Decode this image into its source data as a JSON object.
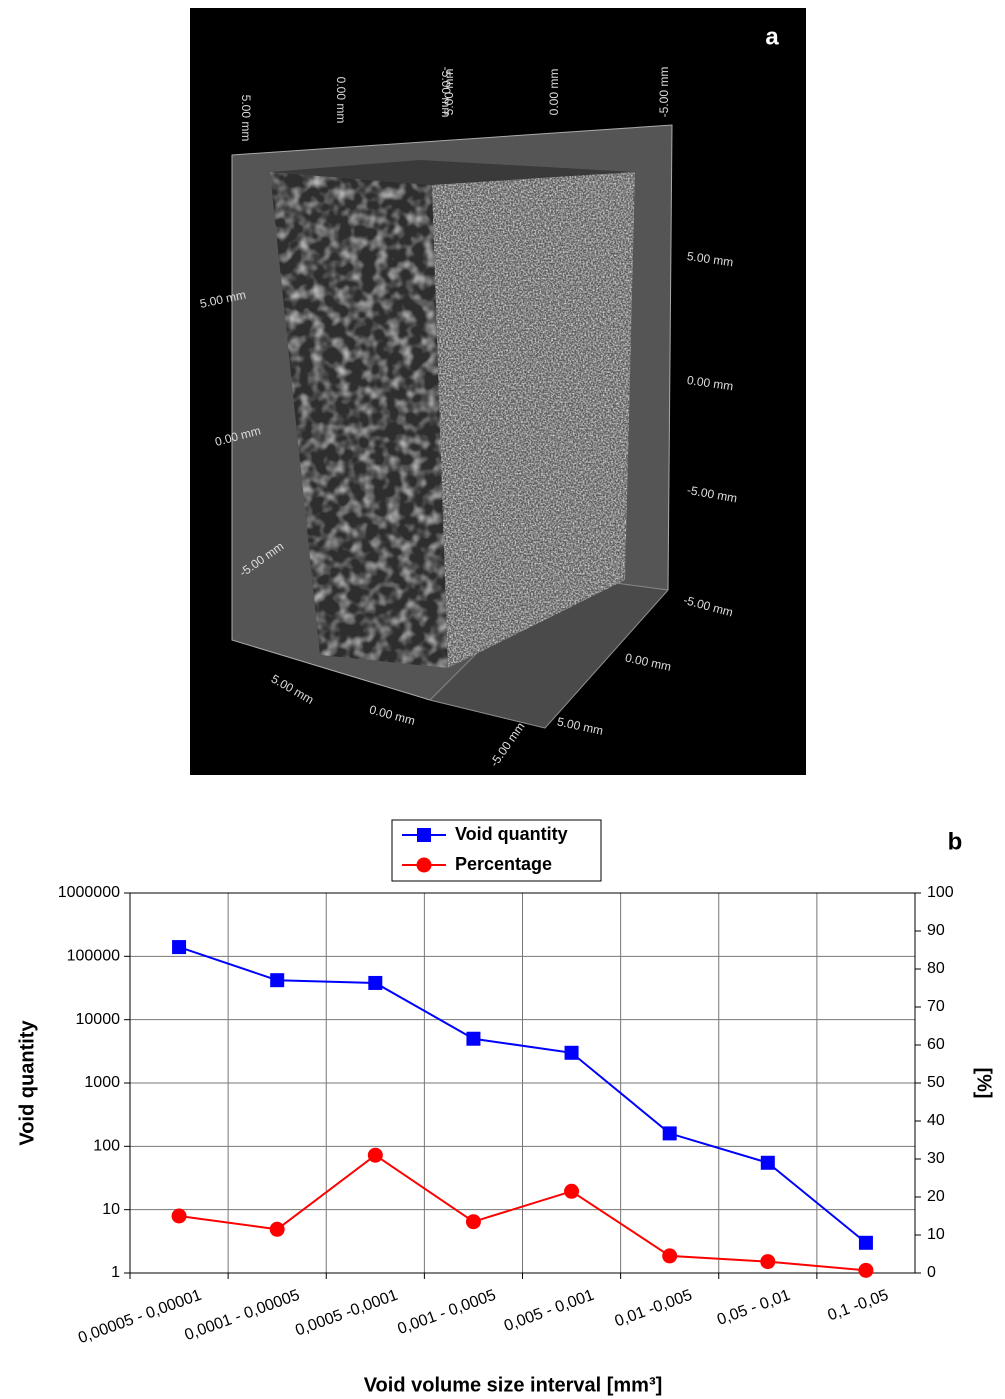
{
  "panel_a": {
    "label": "a",
    "axis_labels": [
      "5.00 mm",
      "0.00 mm",
      "-5.00 mm",
      "5.00 mm",
      "0.00 mm",
      "-5.00 mm",
      "5.00 mm",
      "0.00 mm",
      "-5.00 mm",
      "5.00 mm",
      "0.00 mm",
      "-5.00 mm",
      "5.00 mm",
      "0.00 mm",
      "-5.00 mm",
      "-5.00 mm",
      "0.00 mm",
      "5.00 mm"
    ]
  },
  "chart_data": {
    "type": "line",
    "label": "b",
    "xlabel": "Void volume size interval [mm³]",
    "ylabel": "Void quantity",
    "y2label": "[%]",
    "categories": [
      "0,00005 - 0,00001",
      "0,0001 - 0,00005",
      "0,0005 -0,0001",
      "0,001 - 0,0005",
      "0,005 - 0,001",
      "0,01 -0,005",
      "0,05 - 0,01",
      "0,1 -0,05"
    ],
    "series": [
      {
        "name": "Void quantity",
        "color": "#0000ff",
        "marker": "square",
        "values": [
          140000,
          42000,
          38000,
          5000,
          3000,
          160,
          55,
          3
        ]
      },
      {
        "name": "Percentage",
        "color": "#ff0000",
        "marker": "circle",
        "axis": "y2",
        "values": [
          15,
          11.5,
          31,
          13.5,
          21.5,
          4.5,
          3,
          0.7
        ]
      }
    ],
    "ylog": true,
    "ylim": [
      1,
      1000000
    ],
    "yticks": [
      1,
      10,
      100,
      1000,
      10000,
      100000,
      1000000
    ],
    "y2lim": [
      0,
      100
    ],
    "y2ticks": [
      0,
      10,
      20,
      30,
      40,
      50,
      60,
      70,
      80,
      90,
      100
    ],
    "grid": true,
    "legend": "top"
  }
}
